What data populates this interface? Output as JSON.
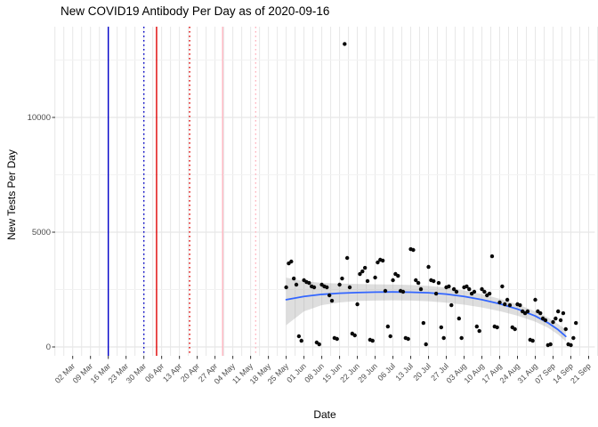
{
  "page": {
    "title": "New COVID19 Antibody Per Day as of 2020-09-16"
  },
  "chart_data": {
    "type": "scatter",
    "title": "New COVID19 Antibody Per Day as of 2020-09-16",
    "xlabel": "Date",
    "ylabel": "New Tests Per Day",
    "legend": "none",
    "grid": "on",
    "x_axis": {
      "start_date": "2020-03-02",
      "tick_interval_days": 7,
      "tick_labels": [
        "02 Mar",
        "09 Mar",
        "16 Mar",
        "23 Mar",
        "30 Mar",
        "06 Apr",
        "13 Apr",
        "20 Apr",
        "27 Apr",
        "04 May",
        "11 May",
        "18 May",
        "25 May",
        "01 Jun",
        "08 Jun",
        "15 Jun",
        "22 Jun",
        "29 Jun",
        "06 Jul",
        "13 Jul",
        "20 Jul",
        "27 Jul",
        "03 Aug",
        "10 Aug",
        "17 Aug",
        "24 Aug",
        "31 Aug",
        "07 Sep",
        "14 Sep",
        "21 Sep"
      ]
    },
    "y_axis": {
      "tick_labels": [
        "0",
        "5000",
        "10000"
      ],
      "ticks": [
        0,
        5000,
        10000
      ],
      "minor_step": 2500,
      "range": [
        -390,
        13950
      ]
    },
    "colors": {
      "point": "#0a0a0a",
      "smooth_line": "#3366FF",
      "band_fill": "#999999",
      "grid_major": "#e7e7e7",
      "grid_minor": "#f2f2f2",
      "tick_text": "#4d4d4d",
      "vline_blue": "#0000C8",
      "vline_red": "#DE0000",
      "vline_pink": "#FFB3BE"
    },
    "vlines": [
      {
        "date": "2020-03-16",
        "color": "#0000C8",
        "style": "solid"
      },
      {
        "date": "2020-03-30",
        "color": "#0000C8",
        "style": "dotted"
      },
      {
        "date": "2020-04-04",
        "color": "#DE0000",
        "style": "solid"
      },
      {
        "date": "2020-04-17",
        "color": "#DE0000",
        "style": "dotted"
      },
      {
        "date": "2020-04-30",
        "color": "#FFB3BE",
        "style": "solid"
      },
      {
        "date": "2020-05-13",
        "color": "#FFB3BE",
        "style": "dotted"
      }
    ],
    "points": [
      [
        "2020-05-25",
        2597
      ],
      [
        "2020-05-26",
        3640
      ],
      [
        "2020-05-27",
        3721
      ],
      [
        "2020-05-28",
        2984
      ],
      [
        "2020-05-29",
        2713
      ],
      [
        "2020-05-30",
        465
      ],
      [
        "2020-05-31",
        271
      ],
      [
        "2020-06-01",
        2907
      ],
      [
        "2020-06-02",
        2829
      ],
      [
        "2020-06-03",
        2790
      ],
      [
        "2020-06-04",
        2636
      ],
      [
        "2020-06-05",
        2597
      ],
      [
        "2020-06-06",
        194
      ],
      [
        "2020-06-07",
        116
      ],
      [
        "2020-06-08",
        2713
      ],
      [
        "2020-06-09",
        2636
      ],
      [
        "2020-06-10",
        2597
      ],
      [
        "2020-06-11",
        2248
      ],
      [
        "2020-06-12",
        2015
      ],
      [
        "2020-06-13",
        388
      ],
      [
        "2020-06-14",
        349
      ],
      [
        "2020-06-15",
        2713
      ],
      [
        "2020-06-16",
        2984
      ],
      [
        "2020-06-17",
        13200
      ],
      [
        "2020-06-18",
        3876
      ],
      [
        "2020-06-19",
        2597
      ],
      [
        "2020-06-20",
        581
      ],
      [
        "2020-06-21",
        504
      ],
      [
        "2020-06-22",
        1860
      ],
      [
        "2020-06-23",
        3178
      ],
      [
        "2020-06-24",
        3294
      ],
      [
        "2020-06-25",
        3449
      ],
      [
        "2020-06-26",
        2869
      ],
      [
        "2020-06-27",
        310
      ],
      [
        "2020-06-28",
        271
      ],
      [
        "2020-06-29",
        3023
      ],
      [
        "2020-06-30",
        3682
      ],
      [
        "2020-07-01",
        3798
      ],
      [
        "2020-07-02",
        3760
      ],
      [
        "2020-07-03",
        2442
      ],
      [
        "2020-07-04",
        891
      ],
      [
        "2020-07-05",
        465
      ],
      [
        "2020-07-06",
        2907
      ],
      [
        "2020-07-07",
        3178
      ],
      [
        "2020-07-08",
        3100
      ],
      [
        "2020-07-09",
        2442
      ],
      [
        "2020-07-10",
        2403
      ],
      [
        "2020-07-11",
        388
      ],
      [
        "2020-07-12",
        349
      ],
      [
        "2020-07-13",
        4263
      ],
      [
        "2020-07-14",
        4225
      ],
      [
        "2020-07-15",
        2907
      ],
      [
        "2020-07-16",
        2790
      ],
      [
        "2020-07-17",
        2519
      ],
      [
        "2020-07-18",
        1046
      ],
      [
        "2020-07-19",
        116
      ],
      [
        "2020-07-20",
        3488
      ],
      [
        "2020-07-21",
        2907
      ],
      [
        "2020-07-22",
        2868
      ],
      [
        "2020-07-23",
        2325
      ],
      [
        "2020-07-24",
        2790
      ],
      [
        "2020-07-25",
        853
      ],
      [
        "2020-07-26",
        388
      ],
      [
        "2020-07-27",
        2597
      ],
      [
        "2020-07-28",
        2636
      ],
      [
        "2020-07-29",
        1821
      ],
      [
        "2020-07-30",
        2519
      ],
      [
        "2020-07-31",
        2403
      ],
      [
        "2020-08-01",
        1240
      ],
      [
        "2020-08-02",
        388
      ],
      [
        "2020-08-03",
        2597
      ],
      [
        "2020-08-04",
        2636
      ],
      [
        "2020-08-05",
        2519
      ],
      [
        "2020-08-06",
        2325
      ],
      [
        "2020-08-07",
        2403
      ],
      [
        "2020-08-08",
        891
      ],
      [
        "2020-08-09",
        697
      ],
      [
        "2020-08-10",
        2519
      ],
      [
        "2020-08-11",
        2403
      ],
      [
        "2020-08-12",
        2248
      ],
      [
        "2020-08-13",
        2325
      ],
      [
        "2020-08-14",
        3953
      ],
      [
        "2020-08-15",
        891
      ],
      [
        "2020-08-16",
        853
      ],
      [
        "2020-08-17",
        1938
      ],
      [
        "2020-08-18",
        2636
      ],
      [
        "2020-08-19",
        1860
      ],
      [
        "2020-08-20",
        2054
      ],
      [
        "2020-08-21",
        1821
      ],
      [
        "2020-08-22",
        853
      ],
      [
        "2020-08-23",
        775
      ],
      [
        "2020-08-24",
        1860
      ],
      [
        "2020-08-25",
        1821
      ],
      [
        "2020-08-26",
        1550
      ],
      [
        "2020-08-27",
        1472
      ],
      [
        "2020-08-28",
        1550
      ],
      [
        "2020-08-29",
        310
      ],
      [
        "2020-08-30",
        271
      ],
      [
        "2020-08-31",
        2054
      ],
      [
        "2020-09-01",
        1550
      ],
      [
        "2020-09-02",
        1472
      ],
      [
        "2020-09-03",
        1240
      ],
      [
        "2020-09-04",
        1163
      ],
      [
        "2020-09-05",
        78
      ],
      [
        "2020-09-06",
        116
      ],
      [
        "2020-09-07",
        1085
      ],
      [
        "2020-09-08",
        1240
      ],
      [
        "2020-09-09",
        1550
      ],
      [
        "2020-09-10",
        1163
      ],
      [
        "2020-09-11",
        1472
      ],
      [
        "2020-09-12",
        775
      ],
      [
        "2020-09-13",
        116
      ],
      [
        "2020-09-14",
        78
      ],
      [
        "2020-09-15",
        388
      ],
      [
        "2020-09-16",
        1046
      ]
    ],
    "smooth_line": {
      "color": "#3366FF",
      "points": [
        [
          "2020-05-25",
          2060
        ],
        [
          "2020-06-01",
          2200
        ],
        [
          "2020-06-08",
          2290
        ],
        [
          "2020-06-15",
          2340
        ],
        [
          "2020-06-22",
          2370
        ],
        [
          "2020-06-29",
          2390
        ],
        [
          "2020-07-06",
          2395
        ],
        [
          "2020-07-13",
          2385
        ],
        [
          "2020-07-20",
          2360
        ],
        [
          "2020-07-27",
          2300
        ],
        [
          "2020-08-03",
          2200
        ],
        [
          "2020-08-10",
          2060
        ],
        [
          "2020-08-17",
          1880
        ],
        [
          "2020-08-24",
          1650
        ],
        [
          "2020-08-31",
          1350
        ],
        [
          "2020-09-05",
          1050
        ],
        [
          "2020-09-09",
          750
        ],
        [
          "2020-09-12",
          460
        ]
      ]
    },
    "confidence_band": {
      "fill": "#999999",
      "opacity": 0.32,
      "points": [
        [
          "2020-05-25",
          3020,
          950
        ],
        [
          "2020-06-01",
          2870,
          1550
        ],
        [
          "2020-06-08",
          2790,
          1820
        ],
        [
          "2020-06-15",
          2760,
          1940
        ],
        [
          "2020-06-22",
          2740,
          2000
        ],
        [
          "2020-06-29",
          2730,
          2020
        ],
        [
          "2020-07-06",
          2720,
          2030
        ],
        [
          "2020-07-13",
          2700,
          2020
        ],
        [
          "2020-07-20",
          2660,
          1990
        ],
        [
          "2020-07-27",
          2580,
          1930
        ],
        [
          "2020-08-03",
          2460,
          1840
        ],
        [
          "2020-08-10",
          2300,
          1720
        ],
        [
          "2020-08-17",
          2100,
          1560
        ],
        [
          "2020-08-24",
          1860,
          1360
        ],
        [
          "2020-08-31",
          1550,
          1100
        ],
        [
          "2020-09-05",
          1280,
          840
        ],
        [
          "2020-09-09",
          1000,
          540
        ],
        [
          "2020-09-12",
          760,
          240
        ]
      ]
    }
  }
}
